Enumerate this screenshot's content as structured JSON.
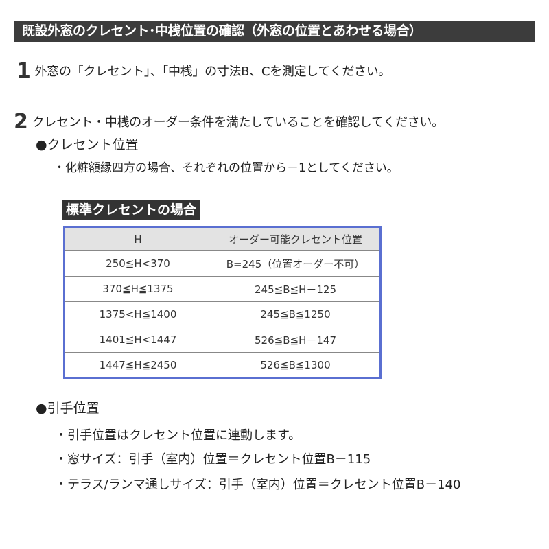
{
  "title": "既設外窓のクレセント･中桟位置の確認（外窓の位置とあわせる場合）",
  "step1": {
    "number": "1",
    "text": "外窓の「クレセント」、「中桟」の寸法B、Cを測定してください。"
  },
  "step2": {
    "number": "2",
    "text": "クレセント・中桟のオーダー条件を満たしていることを確認してください。"
  },
  "crescent": {
    "heading": "●クレセント位置",
    "note": "・化粧額縁四方の場合、それぞれの位置から－1としてください。"
  },
  "table": {
    "label": "標準クレセントの場合",
    "headers": [
      "H",
      "オーダー可能クレセント位置"
    ],
    "rows": [
      [
        "250≦H<370",
        "B=245（位置オーダー不可）"
      ],
      [
        "370≦H≦1375",
        "245≦B≦H－125"
      ],
      [
        "1375<H≦1400",
        "245≦B≦1250"
      ],
      [
        "1401≦H<1447",
        "526≦B≦H－147"
      ],
      [
        "1447≦H≦2450",
        "526≦B≦1300"
      ]
    ]
  },
  "handle": {
    "heading": "●引手位置",
    "items": [
      "・引手位置はクレセント位置に連動します。",
      "・窓サイズ：引手（室内）位置＝クレセント位置B－115",
      "・テラス/ランマ通しサイズ：引手（室内）位置＝クレセント位置B－140"
    ]
  }
}
